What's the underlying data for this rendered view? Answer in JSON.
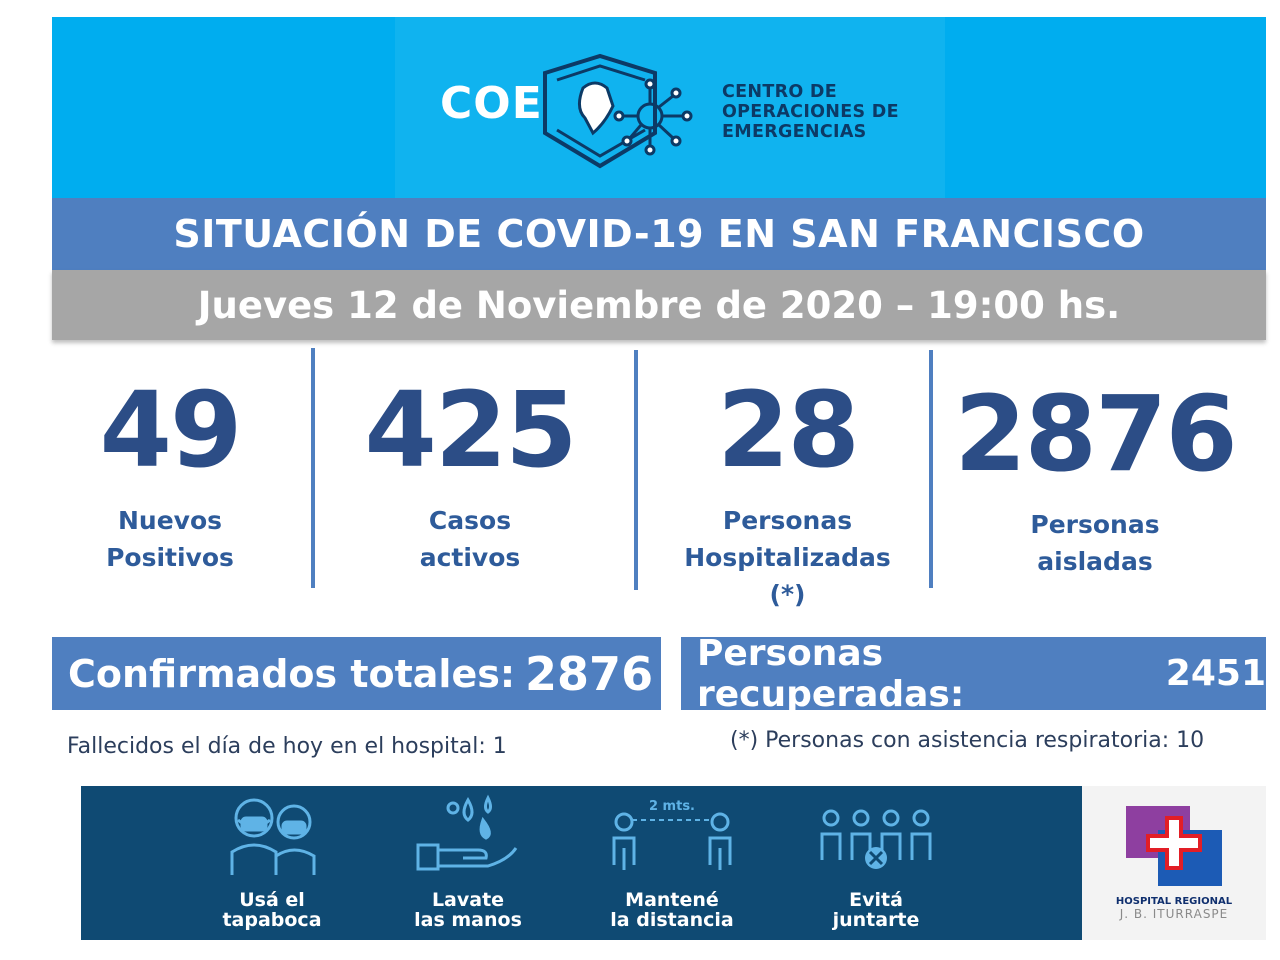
{
  "header": {
    "logo_word": "COE",
    "subtitle_lines": [
      "CENTRO DE",
      "OPERACIONES DE",
      "EMERGENCIAS"
    ],
    "background": "#00adef"
  },
  "title": "SITUACIÓN DE COVID-19 EN SAN FRANCISCO",
  "date": "Jueves 12 de Noviembre de 2020 – 19:00 hs.",
  "stats": [
    {
      "value": "49",
      "label_lines": [
        "Nuevos",
        "Positivos"
      ]
    },
    {
      "value": "425",
      "label_lines": [
        "Casos",
        "activos"
      ]
    },
    {
      "value": "28",
      "label_lines": [
        "Personas",
        "Hospitalizadas",
        "(*)"
      ]
    },
    {
      "value": "2876",
      "label_lines": [
        "Personas",
        "aisladas"
      ]
    }
  ],
  "totals": {
    "confirmed_label": "Confirmados totales:",
    "confirmed_value": "2876",
    "recovered_label": "Personas recuperadas:",
    "recovered_value": "2451"
  },
  "notes": {
    "deaths": "Fallecidos el día de hoy en el hospital:  1",
    "respiratory": "(*) Personas con asistencia respiratoria: 10"
  },
  "tips": [
    {
      "icon": "mask-people-icon",
      "lines": [
        "Usá el",
        "tapaboca"
      ]
    },
    {
      "icon": "hand-wash-icon",
      "lines": [
        "Lavate",
        "las manos"
      ]
    },
    {
      "icon": "distance-icon",
      "lines": [
        "Mantené",
        "la distancia"
      ],
      "distance_text": "2 mts."
    },
    {
      "icon": "no-group-icon",
      "lines": [
        "Evitá",
        "juntarte"
      ]
    }
  ],
  "hospital": {
    "name_line1": "HOSPITAL REGIONAL",
    "name_line2": "J. B. ITURRASPE"
  },
  "colors": {
    "accent_blue": "#4f7fc0",
    "stat_blue": "#2c4d86",
    "banner": "#0f4a73",
    "date_gray": "#a6a6a6"
  }
}
